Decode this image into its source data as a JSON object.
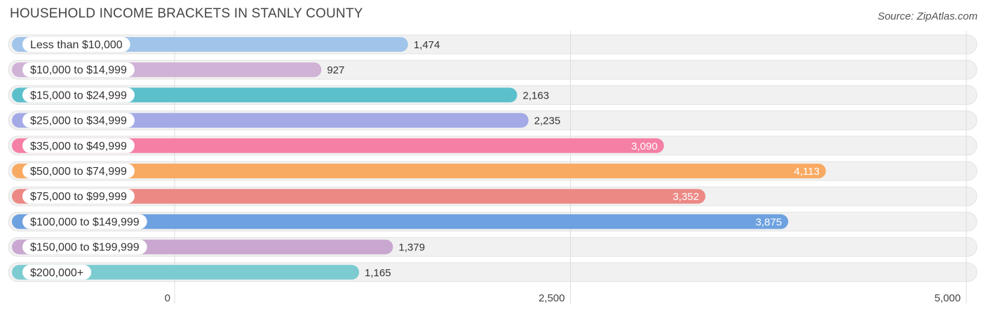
{
  "title": "HOUSEHOLD INCOME BRACKETS IN STANLY COUNTY",
  "source": "Source: ZipAtlas.com",
  "chart_data": {
    "type": "bar",
    "orientation": "horizontal",
    "title": "HOUSEHOLD INCOME BRACKETS IN STANLY COUNTY",
    "xlabel": "",
    "ylabel": "",
    "xlim": [
      0,
      5000
    ],
    "ticks": [
      {
        "value": 0,
        "label": "0"
      },
      {
        "value": 2500,
        "label": "2,500"
      },
      {
        "value": 5000,
        "label": "5,000"
      }
    ],
    "grid": true,
    "categories": [
      "Less than $10,000",
      "$10,000 to $14,999",
      "$15,000 to $24,999",
      "$25,000 to $34,999",
      "$35,000 to $49,999",
      "$50,000 to $74,999",
      "$75,000 to $99,999",
      "$100,000 to $149,999",
      "$150,000 to $199,999",
      "$200,000+"
    ],
    "values": [
      1474,
      927,
      2163,
      2235,
      3090,
      4113,
      3352,
      3875,
      1379,
      1165
    ],
    "value_labels": [
      "1,474",
      "927",
      "2,163",
      "2,235",
      "3,090",
      "4,113",
      "3,352",
      "3,875",
      "1,379",
      "1,165"
    ],
    "colors": [
      "#a0c4ea",
      "#d0b2d6",
      "#5cc0cb",
      "#a4aae6",
      "#f57fa5",
      "#f8aa63",
      "#ec8985",
      "#6da1df",
      "#c9a7d0",
      "#7ccbd1"
    ]
  }
}
